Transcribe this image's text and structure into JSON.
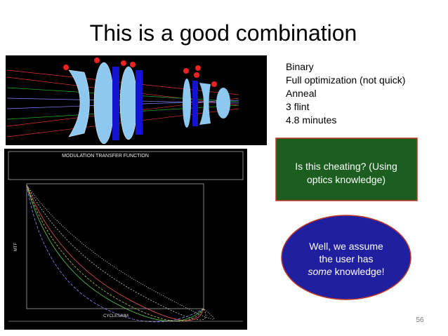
{
  "title": "This is a good combination",
  "notes": [
    "Binary",
    "Full optimization (not quick)",
    "Anneal",
    "3 flint",
    "4.8 minutes"
  ],
  "green_box": {
    "lines": [
      "Is this cheating?  (Using",
      "optics knowledge)"
    ]
  },
  "oval": {
    "lines": [
      "Well, we assume",
      "the user has"
    ],
    "emphasis": "some",
    "rest": " knowledge!"
  },
  "mtf_plot": {
    "title": "MODULATION TRANSFER FUNCTION",
    "x_label": "CYCLES/MM",
    "y_label": "MTF"
  },
  "page_number": "56"
}
